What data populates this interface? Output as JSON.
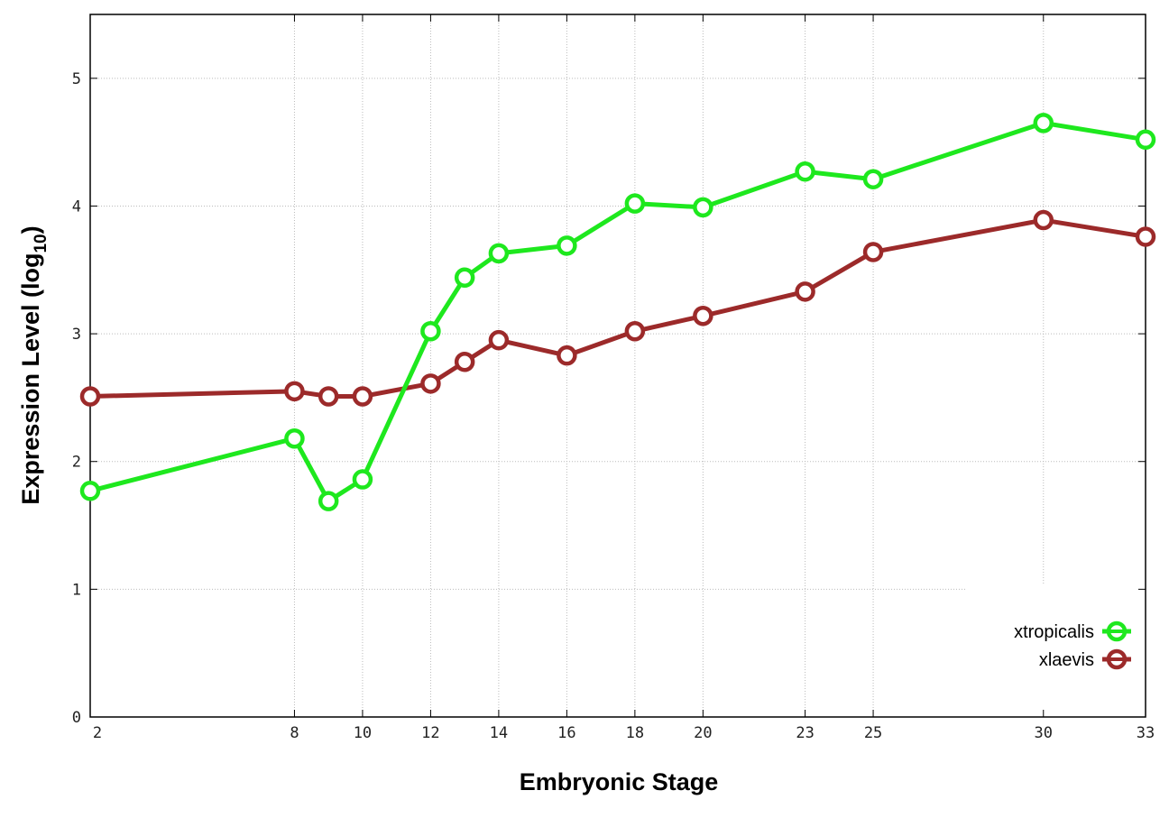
{
  "chart_data": {
    "type": "line",
    "title": "",
    "xlabel": "Embryonic Stage",
    "ylabel_main": "Expression Level (log",
    "ylabel_sub": "10",
    "ylabel_end": ")",
    "xlim": [
      2,
      33
    ],
    "ylim": [
      0,
      5.5
    ],
    "xticks": [
      2,
      8,
      10,
      12,
      14,
      16,
      18,
      20,
      23,
      25,
      30,
      33
    ],
    "yticks": [
      0,
      1,
      2,
      3,
      4,
      5
    ],
    "grid": true,
    "legend_position": "bottom-right",
    "x": [
      2,
      8,
      9,
      10,
      12,
      13,
      14,
      16,
      18,
      20,
      23,
      25,
      30,
      33
    ],
    "series": [
      {
        "name": "xtropicalis",
        "color": "#1ee81e",
        "values": [
          1.77,
          2.18,
          1.69,
          1.86,
          3.02,
          3.44,
          3.63,
          3.69,
          4.02,
          3.99,
          4.27,
          4.21,
          4.65,
          4.52
        ]
      },
      {
        "name": "xlaevis",
        "color": "#9c2a2a",
        "values": [
          2.51,
          2.55,
          2.51,
          2.51,
          2.61,
          2.78,
          2.95,
          2.83,
          3.02,
          3.14,
          3.33,
          3.64,
          3.89,
          3.76
        ]
      }
    ]
  }
}
